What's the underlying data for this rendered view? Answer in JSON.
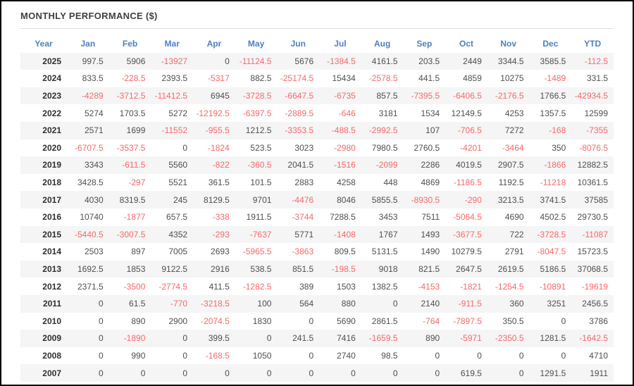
{
  "panel": {
    "title": "MONTHLY PERFORMANCE ($)"
  },
  "colors": {
    "frame_border": "#000000",
    "title_text": "#3f3f3f",
    "divider": "#dddddd",
    "header_text": "#4c80c1",
    "positive_text": "#4f4f4f",
    "negative_text": "#f86868",
    "year_text": "#2f2f2f",
    "row_stripe": "#f5f5f5",
    "background": "#ffffff"
  },
  "chart_data": {
    "type": "table",
    "title": "MONTHLY PERFORMANCE ($)",
    "columns": [
      "Year",
      "Jan",
      "Feb",
      "Mar",
      "Apr",
      "May",
      "Jun",
      "Jul",
      "Aug",
      "Sep",
      "Oct",
      "Nov",
      "Dec",
      "YTD"
    ],
    "rows": [
      {
        "year": "2025",
        "values": [
          "997.5",
          "5906",
          "-13927",
          "0",
          "-11124.5",
          "5676",
          "-1384.5",
          "4161.5",
          "203.5",
          "2449",
          "3344.5",
          "3585.5",
          "-112.5"
        ]
      },
      {
        "year": "2024",
        "values": [
          "833.5",
          "-228.5",
          "2393.5",
          "-5317",
          "882.5",
          "-25174.5",
          "15434",
          "-2578.5",
          "441.5",
          "4859",
          "10275",
          "-1489",
          "331.5"
        ]
      },
      {
        "year": "2023",
        "values": [
          "-4289",
          "-3712.5",
          "-11412.5",
          "6945",
          "-3728.5",
          "-6647.5",
          "-6735",
          "857.5",
          "-7395.5",
          "-6406.5",
          "-2176.5",
          "1766.5",
          "-42934.5"
        ]
      },
      {
        "year": "2022",
        "values": [
          "5274",
          "1703.5",
          "5272",
          "-12192.5",
          "-6397.5",
          "-2889.5",
          "-646",
          "3181",
          "1534",
          "12149.5",
          "4253",
          "1357.5",
          "12599"
        ]
      },
      {
        "year": "2021",
        "values": [
          "2571",
          "1699",
          "-11552",
          "-955.5",
          "1212.5",
          "-3353.5",
          "-488.5",
          "-2992.5",
          "107",
          "-706.5",
          "7272",
          "-168",
          "-7355"
        ]
      },
      {
        "year": "2020",
        "values": [
          "-6707.5",
          "-3537.5",
          "0",
          "-1824",
          "523.5",
          "3023",
          "-2980",
          "7980.5",
          "2760.5",
          "-4201",
          "-3464",
          "350",
          "-8076.5"
        ]
      },
      {
        "year": "2019",
        "values": [
          "3343",
          "-611.5",
          "5560",
          "-822",
          "-360.5",
          "2041.5",
          "-1516",
          "-2099",
          "2286",
          "4019.5",
          "2907.5",
          "-1866",
          "12882.5"
        ]
      },
      {
        "year": "2018",
        "values": [
          "3428.5",
          "-297",
          "5521",
          "361.5",
          "101.5",
          "2883",
          "4258",
          "448",
          "4869",
          "-1186.5",
          "1192.5",
          "-11218",
          "10361.5"
        ]
      },
      {
        "year": "2017",
        "values": [
          "4030",
          "8319.5",
          "245",
          "8129.5",
          "9701",
          "-4476",
          "8046",
          "5855.5",
          "-8930.5",
          "-290",
          "3213.5",
          "3741.5",
          "37585"
        ]
      },
      {
        "year": "2016",
        "values": [
          "10740",
          "-1877",
          "657.5",
          "-338",
          "1911.5",
          "-3744",
          "7288.5",
          "3453",
          "7511",
          "-5064.5",
          "4690",
          "4502.5",
          "29730.5"
        ]
      },
      {
        "year": "2015",
        "values": [
          "-5440.5",
          "-3007.5",
          "4352",
          "-293",
          "-7637",
          "5771",
          "-1408",
          "1767",
          "1493",
          "-3677.5",
          "722",
          "-3728.5",
          "-11087"
        ]
      },
      {
        "year": "2014",
        "values": [
          "2503",
          "897",
          "7005",
          "2693",
          "-5965.5",
          "-3863",
          "809.5",
          "5131.5",
          "1490",
          "10279.5",
          "2791",
          "-8047.5",
          "15723.5"
        ]
      },
      {
        "year": "2013",
        "values": [
          "1692.5",
          "1853",
          "9122.5",
          "2916",
          "538.5",
          "851.5",
          "-198.5",
          "9018",
          "821.5",
          "2647.5",
          "2619.5",
          "5186.5",
          "37068.5"
        ]
      },
      {
        "year": "2012",
        "values": [
          "2371.5",
          "-3500",
          "-2774.5",
          "411.5",
          "-1282.5",
          "389",
          "1503",
          "1382.5",
          "-4153",
          "-1821",
          "-1254.5",
          "-10891",
          "-19619"
        ]
      },
      {
        "year": "2011",
        "values": [
          "0",
          "61.5",
          "-770",
          "-3218.5",
          "100",
          "564",
          "880",
          "0",
          "2140",
          "-911.5",
          "360",
          "3251",
          "2456.5"
        ]
      },
      {
        "year": "2010",
        "values": [
          "0",
          "890",
          "2900",
          "-2074.5",
          "1830",
          "0",
          "5690",
          "2861.5",
          "-764",
          "-7897.5",
          "350.5",
          "0",
          "3786"
        ]
      },
      {
        "year": "2009",
        "values": [
          "0",
          "-1890",
          "0",
          "399.5",
          "0",
          "241.5",
          "7416",
          "-1659.5",
          "890",
          "-5971",
          "-2350.5",
          "1281.5",
          "-1642.5"
        ]
      },
      {
        "year": "2008",
        "values": [
          "0",
          "990",
          "0",
          "-168.5",
          "1050",
          "0",
          "2740",
          "98.5",
          "0",
          "0",
          "0",
          "0",
          "4710"
        ]
      },
      {
        "year": "2007",
        "values": [
          "0",
          "0",
          "0",
          "0",
          "0",
          "0",
          "0",
          "0",
          "0",
          "619.5",
          "0",
          "1291.5",
          "1911"
        ]
      }
    ]
  }
}
